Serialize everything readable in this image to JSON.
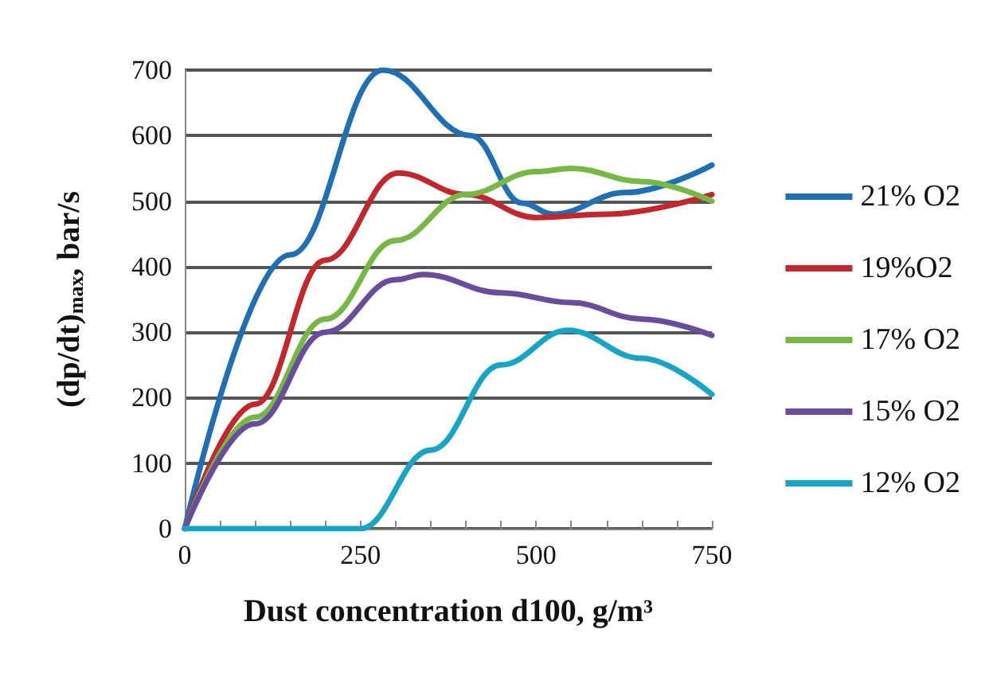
{
  "chart_data": {
    "type": "line",
    "xlabel": "Dust concentration d100, g/m³",
    "ylabel": "(dp/dt)$_{max}$, bar/s",
    "xlim": [
      0,
      750
    ],
    "ylim": [
      0,
      700
    ],
    "xticks": [
      0,
      {
        "value": 50,
        "label": null
      },
      {
        "value": 100,
        "label": null
      },
      {
        "value": 150,
        "label": null
      },
      {
        "value": 200,
        "label": null
      },
      250,
      {
        "value": 300,
        "label": null
      },
      {
        "value": 350,
        "label": null
      },
      {
        "value": 400,
        "label": null
      },
      {
        "value": 450,
        "label": null
      },
      500,
      {
        "value": 550,
        "label": null
      },
      {
        "value": 600,
        "label": null
      },
      {
        "value": 650,
        "label": null
      },
      {
        "value": 700,
        "label": null
      },
      750
    ],
    "yticks": [
      0,
      100,
      200,
      300,
      400,
      500,
      600,
      700
    ],
    "grid": "y",
    "legend": "right",
    "marker": "none",
    "line_style": "solid",
    "series": [
      {
        "name": "21% O2",
        "color": "#1f6fb5",
        "x": [
          0,
          150,
          282,
          407,
          480,
          524,
          627,
          750
        ],
        "values": [
          0,
          418,
          700,
          600,
          497,
          480,
          513,
          555
        ]
      },
      {
        "name": "19%O2",
        "color": "#c1272d",
        "x": [
          0,
          100,
          200,
          304,
          400,
          500,
          600,
          750
        ],
        "values": [
          0,
          190,
          410,
          543,
          510,
          475,
          480,
          510
        ]
      },
      {
        "name": "17% O2",
        "color": "#77b743",
        "x": [
          0,
          100,
          200,
          300,
          400,
          500,
          550,
          650,
          750
        ],
        "values": [
          0,
          170,
          320,
          440,
          510,
          545,
          550,
          530,
          500
        ]
      },
      {
        "name": "15% O2",
        "color": "#6a4c9c",
        "x": [
          0,
          100,
          200,
          300,
          340,
          450,
          550,
          650,
          750
        ],
        "values": [
          0,
          160,
          300,
          380,
          388,
          360,
          345,
          320,
          295
        ]
      },
      {
        "name": "12% O2",
        "color": "#17a5c6",
        "x": [
          0,
          50,
          150,
          250,
          350,
          450,
          545,
          650,
          750
        ],
        "values": [
          0,
          0,
          0,
          0,
          120,
          250,
          303,
          260,
          205
        ]
      }
    ]
  }
}
